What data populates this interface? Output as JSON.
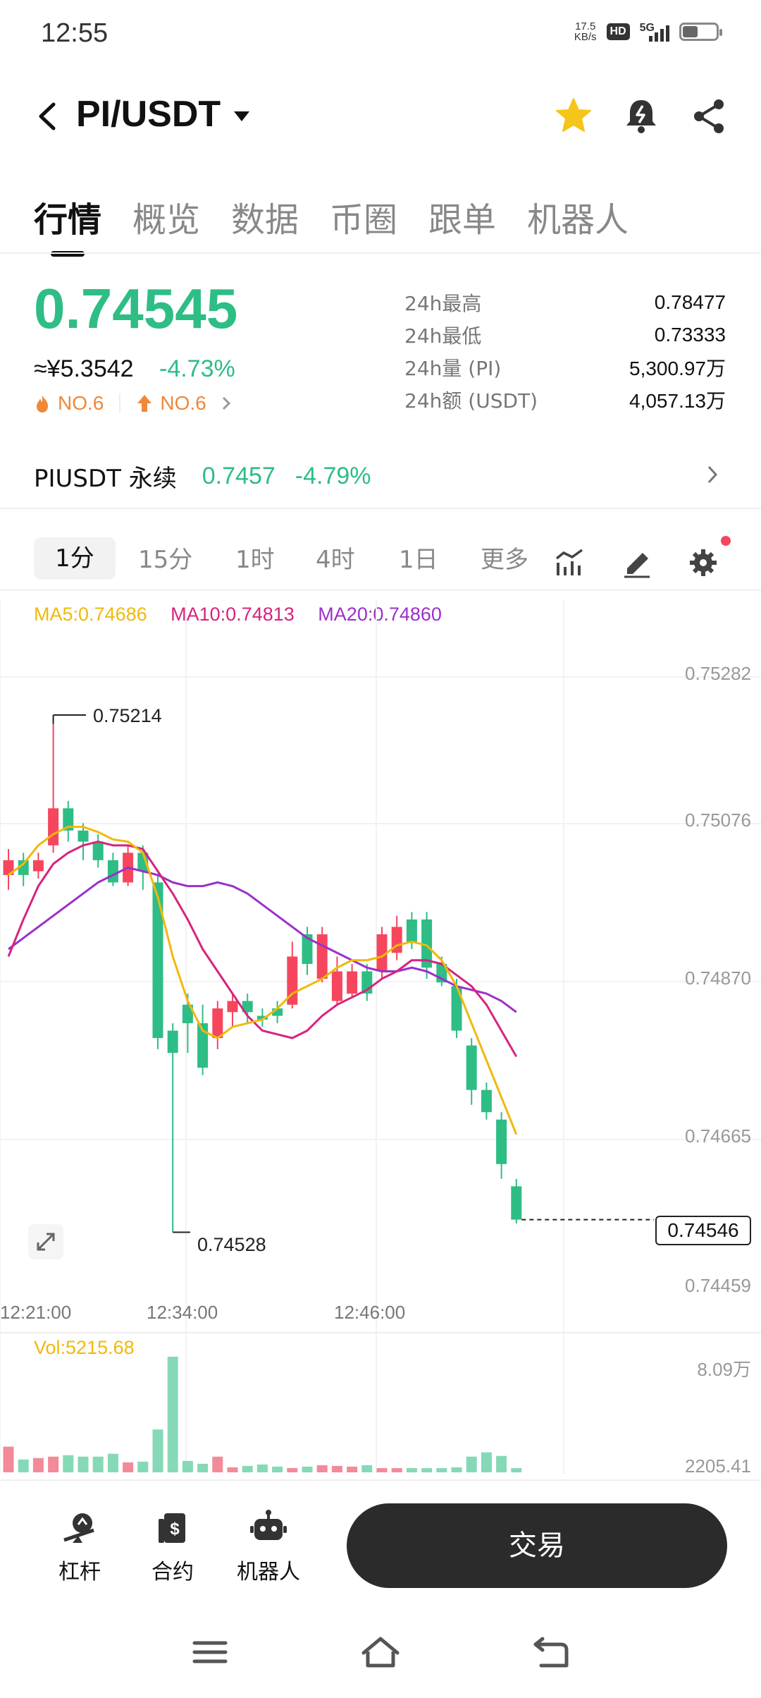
{
  "status_bar": {
    "time": "12:55",
    "net_speed_value": "17.5",
    "net_speed_unit": "KB/s",
    "hd": "HD",
    "signal": "5G",
    "battery_level": 0.45
  },
  "header": {
    "pair": "PI/USDT",
    "favorite": true
  },
  "tabs": [
    {
      "label": "行情",
      "active": true
    },
    {
      "label": "概览"
    },
    {
      "label": "数据"
    },
    {
      "label": "币圈"
    },
    {
      "label": "跟单"
    },
    {
      "label": "机器人"
    }
  ],
  "price": {
    "last": "0.74545",
    "cny": "≈¥5.3542",
    "change": "-4.73%",
    "rank_hot": "NO.6",
    "rank_up": "NO.6"
  },
  "stats": [
    {
      "label": "24h最高",
      "value": "0.78477"
    },
    {
      "label": "24h最低",
      "value": "0.73333"
    },
    {
      "label": "24h量 (PI)",
      "value": "5,300.97万"
    },
    {
      "label": "24h额 (USDT)",
      "value": "4,057.13万"
    }
  ],
  "perpetual": {
    "name": "PIUSDT 永续",
    "price": "0.7457",
    "change": "-4.79%"
  },
  "intervals": [
    {
      "label": "1分",
      "active": true
    },
    {
      "label": "15分"
    },
    {
      "label": "1时"
    },
    {
      "label": "4时"
    },
    {
      "label": "1日"
    },
    {
      "label": "更多"
    }
  ],
  "ma_legend": {
    "ma5": "MA5:0.74686",
    "ma10": "MA10:0.74813",
    "ma20": "MA20:0.74860"
  },
  "colors": {
    "up": "#f6465d",
    "down": "#2ebd85",
    "ma5": "#f0b90b",
    "ma10": "#d6247d",
    "ma20": "#9b30c9",
    "accent": "#2ebd85"
  },
  "chart_data": {
    "type": "candlestick",
    "price_axis": [
      "0.75282",
      "0.75076",
      "0.74870",
      "0.74665",
      "0.74459"
    ],
    "time_axis": [
      "12:21:00",
      "12:34:00",
      "12:46:00"
    ],
    "ylim": [
      0.74459,
      0.75282
    ],
    "high_marker": "0.75214",
    "low_marker": "0.74528",
    "last_price_marker": "0.74546",
    "candles": [
      [
        0.7501,
        0.7503,
        0.7499,
        0.75045
      ],
      [
        0.7503,
        0.7501,
        0.74995,
        0.7504
      ],
      [
        0.75015,
        0.7503,
        0.75005,
        0.7504
      ],
      [
        0.7505,
        0.751,
        0.7504,
        0.75214
      ],
      [
        0.751,
        0.7507,
        0.75055,
        0.7511
      ],
      [
        0.7507,
        0.75055,
        0.7503,
        0.7508
      ],
      [
        0.75055,
        0.7503,
        0.7502,
        0.75065
      ],
      [
        0.7503,
        0.75,
        0.74995,
        0.7504
      ],
      [
        0.75,
        0.7504,
        0.74995,
        0.7505
      ],
      [
        0.7504,
        0.75015,
        0.7499,
        0.7505
      ],
      [
        0.75,
        0.7479,
        0.74775,
        0.7501
      ],
      [
        0.748,
        0.7477,
        0.74528,
        0.7481
      ],
      [
        0.74835,
        0.7481,
        0.7477,
        0.7485
      ],
      [
        0.7481,
        0.7475,
        0.7474,
        0.74835
      ],
      [
        0.7479,
        0.7483,
        0.74775,
        0.7484
      ],
      [
        0.74825,
        0.7484,
        0.74805,
        0.7485
      ],
      [
        0.7484,
        0.74825,
        0.7481,
        0.7485
      ],
      [
        0.7482,
        0.74815,
        0.74805,
        0.7483
      ],
      [
        0.7483,
        0.7482,
        0.7481,
        0.7484
      ],
      [
        0.74835,
        0.749,
        0.7483,
        0.7492
      ],
      [
        0.7493,
        0.7489,
        0.74875,
        0.7494
      ],
      [
        0.7487,
        0.7493,
        0.74865,
        0.7494
      ],
      [
        0.7484,
        0.7488,
        0.74835,
        0.749
      ],
      [
        0.7485,
        0.7488,
        0.74845,
        0.7489
      ],
      [
        0.7488,
        0.7485,
        0.7484,
        0.7489
      ],
      [
        0.7488,
        0.7493,
        0.7487,
        0.7494
      ],
      [
        0.74905,
        0.7494,
        0.74895,
        0.74955
      ],
      [
        0.7495,
        0.7492,
        0.7491,
        0.7496
      ],
      [
        0.7495,
        0.74885,
        0.7487,
        0.7496
      ],
      [
        0.7489,
        0.74865,
        0.7486,
        0.749
      ],
      [
        0.7486,
        0.748,
        0.7479,
        0.7487
      ],
      [
        0.7478,
        0.7472,
        0.747,
        0.7479
      ],
      [
        0.7472,
        0.7469,
        0.7468,
        0.7473
      ],
      [
        0.7468,
        0.7462,
        0.746,
        0.7469
      ],
      [
        0.7459,
        0.74545,
        0.7454,
        0.746
      ]
    ],
    "ma5": [
      0.7501,
      0.75025,
      0.7505,
      0.75065,
      0.75075,
      0.75075,
      0.75068,
      0.75058,
      0.75055,
      0.7504,
      0.7498,
      0.749,
      0.7484,
      0.748,
      0.7479,
      0.74805,
      0.7481,
      0.74815,
      0.7483,
      0.7485,
      0.7486,
      0.7487,
      0.74885,
      0.74895,
      0.74895,
      0.749,
      0.74915,
      0.7492,
      0.74915,
      0.74895,
      0.7486,
      0.7481,
      0.7476,
      0.7471,
      0.7466
    ],
    "ma10": [
      0.749,
      0.7495,
      0.74995,
      0.75025,
      0.7504,
      0.7505,
      0.75055,
      0.7505,
      0.7505,
      0.75045,
      0.75015,
      0.74985,
      0.7495,
      0.7491,
      0.7488,
      0.7485,
      0.7482,
      0.748,
      0.74795,
      0.7479,
      0.748,
      0.7482,
      0.74835,
      0.74845,
      0.74855,
      0.7487,
      0.7488,
      0.74895,
      0.74895,
      0.7489,
      0.74875,
      0.7486,
      0.74835,
      0.748,
      0.74765
    ],
    "ma20": [
      0.7491,
      0.74925,
      0.7494,
      0.74955,
      0.7497,
      0.74985,
      0.75,
      0.7501,
      0.7502,
      0.75015,
      0.7501,
      0.75,
      0.74995,
      0.74995,
      0.75,
      0.74995,
      0.74985,
      0.7497,
      0.74955,
      0.7494,
      0.74925,
      0.74915,
      0.74905,
      0.74895,
      0.74885,
      0.7488,
      0.7488,
      0.74885,
      0.7488,
      0.7487,
      0.7486,
      0.74855,
      0.7485,
      0.7484,
      0.74825
    ],
    "volume_label": "Vol:5215.68",
    "volume_axis": [
      "8.09万",
      "2205.41"
    ],
    "volumes": [
      18000,
      9000,
      10000,
      11000,
      12000,
      11000,
      11000,
      13000,
      7000,
      7500,
      30000,
      80900,
      8000,
      6000,
      11000,
      3500,
      4500,
      5500,
      4000,
      3000,
      4000,
      5000,
      4500,
      4000,
      5000,
      2500,
      1500,
      3000,
      2500,
      2500,
      3500,
      11000,
      14000,
      11500,
      2000
    ],
    "volume_ylim": [
      0,
      80900
    ]
  },
  "bottom_bar": {
    "leverage": "杠杆",
    "contract": "合约",
    "robot": "机器人",
    "trade": "交易"
  }
}
